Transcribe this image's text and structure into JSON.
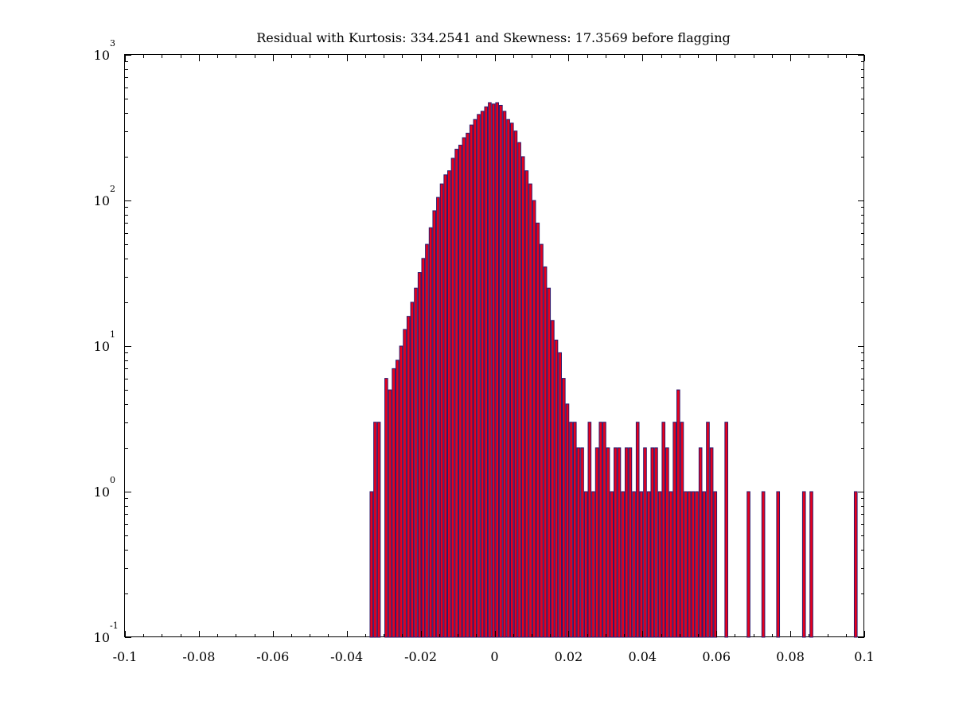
{
  "chart_data": {
    "type": "bar",
    "title": "Residual with Kurtosis: 334.2541 and Skewness: 17.3569 before flagging",
    "xlabel": "",
    "ylabel": "",
    "xlim": [
      -0.1,
      0.1
    ],
    "ylim": [
      0.1,
      1000
    ],
    "yscale": "log",
    "grid": false,
    "bar_color": "#e8001c",
    "edge_color": "#2b1a6e",
    "x_ticks": [
      -0.1,
      -0.08,
      -0.06,
      -0.04,
      -0.02,
      0,
      0.02,
      0.04,
      0.06,
      0.08,
      0.1
    ],
    "x_tick_labels": [
      "-0.1",
      "-0.08",
      "-0.06",
      "-0.04",
      "-0.02",
      "0",
      "0.02",
      "0.04",
      "0.06",
      "0.08",
      "0.1"
    ],
    "y_ticks": [
      0.1,
      1,
      10,
      100,
      1000
    ],
    "y_tick_base": [
      "10",
      "10",
      "10",
      "10",
      "10"
    ],
    "y_tick_exponents": [
      "-1",
      "0",
      "1",
      "2",
      "3"
    ],
    "x": [
      -0.0332,
      -0.0322,
      -0.0312,
      -0.0292,
      -0.0282,
      -0.0272,
      -0.0262,
      -0.0252,
      -0.0242,
      -0.0232,
      -0.0222,
      -0.0212,
      -0.0202,
      -0.0192,
      -0.0182,
      -0.0172,
      -0.0162,
      -0.0152,
      -0.0142,
      -0.0132,
      -0.0122,
      -0.0112,
      -0.0102,
      -0.0092,
      -0.0082,
      -0.0072,
      -0.0062,
      -0.0052,
      -0.0042,
      -0.0032,
      -0.0022,
      -0.0012,
      -0.0002,
      0.0008,
      0.0018,
      0.0028,
      0.0038,
      0.0048,
      0.0058,
      0.0068,
      0.0078,
      0.0088,
      0.0098,
      0.0108,
      0.0118,
      0.0128,
      0.0138,
      0.0148,
      0.0158,
      0.0168,
      0.0178,
      0.0188,
      0.0198,
      0.0208,
      0.0218,
      0.0228,
      0.0238,
      0.0248,
      0.0258,
      0.0268,
      0.0278,
      0.0288,
      0.0298,
      0.0308,
      0.0318,
      0.0328,
      0.0338,
      0.0348,
      0.0358,
      0.0368,
      0.0378,
      0.0388,
      0.0398,
      0.0408,
      0.0418,
      0.0428,
      0.0438,
      0.0448,
      0.0458,
      0.0468,
      0.0478,
      0.0488,
      0.0498,
      0.0508,
      0.0518,
      0.0528,
      0.0538,
      0.0548,
      0.0558,
      0.0568,
      0.0578,
      0.0588,
      0.0598,
      0.0628,
      0.0688,
      0.0728,
      0.0768,
      0.0838,
      0.0858,
      0.0978
    ],
    "values": [
      1,
      3,
      3,
      6,
      5,
      7,
      8,
      10,
      13,
      16,
      20,
      25,
      32,
      40,
      50,
      65,
      85,
      105,
      130,
      150,
      160,
      195,
      225,
      240,
      270,
      290,
      330,
      360,
      390,
      410,
      440,
      470,
      460,
      470,
      450,
      410,
      360,
      340,
      300,
      250,
      200,
      160,
      130,
      100,
      70,
      50,
      35,
      25,
      15,
      11,
      9,
      6,
      4,
      3,
      3,
      2,
      2,
      1,
      3,
      1,
      2,
      3,
      3,
      2,
      1,
      2,
      2,
      1,
      2,
      2,
      1,
      3,
      1,
      2,
      1,
      2,
      2,
      1,
      3,
      2,
      1,
      3,
      5,
      3,
      1,
      1,
      1,
      1,
      2,
      1,
      3,
      2,
      1,
      3,
      1,
      1,
      1,
      1,
      1,
      1
    ]
  }
}
